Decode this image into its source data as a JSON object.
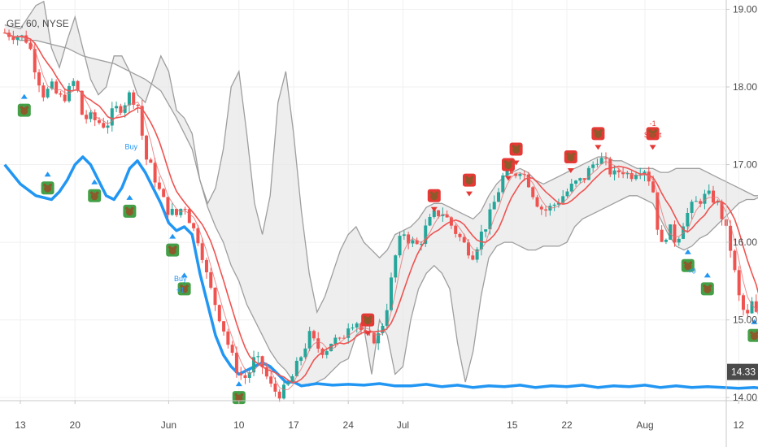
{
  "header": {
    "symbol": "GE, 60, NYSE"
  },
  "chart_data": {
    "type": "candlestick",
    "symbol": "GE",
    "interval": "60",
    "exchange": "NYSE",
    "last_price": {
      "value": 14.33,
      "label": "14.33"
    },
    "y_range": [
      13.96,
      19.12
    ],
    "y_ticks": [
      {
        "value": 19,
        "label": "19.00"
      },
      {
        "value": 18,
        "label": "18.00"
      },
      {
        "value": 17,
        "label": "17.00"
      },
      {
        "value": 16,
        "label": "16.00"
      },
      {
        "value": 15,
        "label": "15.00"
      },
      {
        "value": 14,
        "label": "14.00"
      }
    ],
    "x_ticks": [
      {
        "label": "13",
        "day": 0
      },
      {
        "label": "20",
        "day": 7
      },
      {
        "label": "Jun",
        "day": 19
      },
      {
        "label": "10",
        "day": 28
      },
      {
        "label": "17",
        "day": 35
      },
      {
        "label": "24",
        "day": 42
      },
      {
        "label": "Jul",
        "day": 49
      },
      {
        "label": "15",
        "day": 63
      },
      {
        "label": "22",
        "day": 70
      },
      {
        "label": "Aug",
        "day": 80
      },
      {
        "label": "12",
        "day": 92
      }
    ],
    "price_path": [
      [
        -2,
        18.7
      ],
      [
        0,
        18.65
      ],
      [
        1,
        18.6
      ],
      [
        2,
        18.2
      ],
      [
        3,
        17.9
      ],
      [
        4,
        18.0
      ],
      [
        5,
        17.85
      ],
      [
        6,
        17.9
      ],
      [
        7,
        18.1
      ],
      [
        8,
        17.6
      ],
      [
        9,
        17.6
      ],
      [
        10,
        17.55
      ],
      [
        11,
        17.5
      ],
      [
        12,
        17.7
      ],
      [
        13,
        17.75
      ],
      [
        14,
        17.9
      ],
      [
        15,
        17.8
      ],
      [
        16,
        17.1
      ],
      [
        17,
        16.9
      ],
      [
        18,
        16.6
      ],
      [
        19,
        16.4
      ],
      [
        20,
        16.35
      ],
      [
        21,
        16.5
      ],
      [
        22,
        16.2
      ],
      [
        23,
        16.0
      ],
      [
        24,
        15.5
      ],
      [
        25,
        15.2
      ],
      [
        26,
        14.9
      ],
      [
        27,
        14.55
      ],
      [
        28,
        14.3
      ],
      [
        29,
        14.25
      ],
      [
        30,
        14.5
      ],
      [
        31,
        14.4
      ],
      [
        32,
        14.15
      ],
      [
        33,
        14.05
      ],
      [
        34,
        14.1
      ],
      [
        35,
        14.3
      ],
      [
        36,
        14.55
      ],
      [
        37,
        14.8
      ],
      [
        38,
        14.65
      ],
      [
        39,
        14.6
      ],
      [
        40,
        14.75
      ],
      [
        41,
        14.7
      ],
      [
        42,
        14.95
      ],
      [
        43,
        15.0
      ],
      [
        44,
        14.8
      ],
      [
        45,
        14.75
      ],
      [
        46,
        14.8
      ],
      [
        47,
        15.2
      ],
      [
        48,
        15.8
      ],
      [
        49,
        16.15
      ],
      [
        50,
        16.0
      ],
      [
        51,
        15.95
      ],
      [
        52,
        16.2
      ],
      [
        53,
        16.35
      ],
      [
        54,
        16.4
      ],
      [
        55,
        16.25
      ],
      [
        56,
        16.1
      ],
      [
        57,
        15.95
      ],
      [
        58,
        15.85
      ],
      [
        59,
        16.1
      ],
      [
        60,
        16.3
      ],
      [
        61,
        16.6
      ],
      [
        62,
        16.9
      ],
      [
        63,
        16.85
      ],
      [
        64,
        16.95
      ],
      [
        65,
        16.8
      ],
      [
        66,
        16.55
      ],
      [
        67,
        16.4
      ],
      [
        68,
        16.45
      ],
      [
        69,
        16.55
      ],
      [
        70,
        16.65
      ],
      [
        71,
        16.75
      ],
      [
        72,
        16.8
      ],
      [
        73,
        16.95
      ],
      [
        74,
        17.1
      ],
      [
        75,
        17.0
      ],
      [
        76,
        16.85
      ],
      [
        77,
        16.95
      ],
      [
        78,
        16.85
      ],
      [
        79,
        16.95
      ],
      [
        80,
        16.95
      ],
      [
        81,
        16.7
      ],
      [
        82,
        15.9
      ],
      [
        83,
        16.2
      ],
      [
        84,
        16.0
      ],
      [
        85,
        16.3
      ],
      [
        86,
        16.45
      ],
      [
        87,
        16.55
      ],
      [
        88,
        16.6
      ],
      [
        89,
        16.55
      ],
      [
        90,
        16.3
      ],
      [
        91,
        15.9
      ],
      [
        92,
        15.3
      ],
      [
        93,
        15.0
      ],
      [
        94,
        15.3
      ],
      [
        95,
        14.33
      ]
    ],
    "cloud_upper": [
      [
        -2,
        18.8
      ],
      [
        0,
        18.75
      ],
      [
        2,
        19.05
      ],
      [
        3,
        19.1
      ],
      [
        4,
        18.5
      ],
      [
        5,
        18.25
      ],
      [
        6,
        18.6
      ],
      [
        7,
        18.9
      ],
      [
        8,
        18.5
      ],
      [
        9,
        18.1
      ],
      [
        10,
        17.9
      ],
      [
        11,
        18.0
      ],
      [
        12,
        18.4
      ],
      [
        13,
        18.4
      ],
      [
        14,
        18.2
      ],
      [
        15,
        17.9
      ],
      [
        16,
        17.8
      ],
      [
        17,
        18.1
      ],
      [
        18,
        18.4
      ],
      [
        19,
        18.2
      ],
      [
        20,
        17.7
      ],
      [
        21,
        17.6
      ],
      [
        22,
        17.4
      ],
      [
        23,
        16.8
      ],
      [
        24,
        16.5
      ],
      [
        25,
        16.7
      ],
      [
        26,
        17.2
      ],
      [
        27,
        18.0
      ],
      [
        28,
        18.2
      ],
      [
        29,
        17.4
      ],
      [
        30,
        16.5
      ],
      [
        31,
        16.1
      ],
      [
        32,
        16.6
      ],
      [
        33,
        17.8
      ],
      [
        34,
        18.2
      ],
      [
        35,
        17.4
      ],
      [
        36,
        16.4
      ],
      [
        37,
        15.6
      ],
      [
        38,
        15.1
      ],
      [
        39,
        15.3
      ],
      [
        40,
        15.6
      ],
      [
        41,
        15.9
      ],
      [
        42,
        16.1
      ],
      [
        43,
        16.2
      ],
      [
        44,
        16.0
      ],
      [
        45,
        15.9
      ],
      [
        46,
        15.8
      ],
      [
        47,
        15.9
      ],
      [
        48,
        16.1
      ],
      [
        49,
        16.15
      ],
      [
        50,
        16.2
      ],
      [
        51,
        16.3
      ],
      [
        52,
        16.45
      ],
      [
        53,
        16.5
      ],
      [
        54,
        16.5
      ],
      [
        55,
        16.45
      ],
      [
        56,
        16.4
      ],
      [
        57,
        16.35
      ],
      [
        58,
        16.3
      ],
      [
        59,
        16.4
      ],
      [
        60,
        16.6
      ],
      [
        61,
        16.75
      ],
      [
        62,
        16.85
      ],
      [
        63,
        16.9
      ],
      [
        64,
        16.95
      ],
      [
        65,
        16.9
      ],
      [
        66,
        16.8
      ],
      [
        67,
        16.75
      ],
      [
        68,
        16.8
      ],
      [
        69,
        16.85
      ],
      [
        70,
        16.9
      ],
      [
        71,
        16.95
      ],
      [
        72,
        17.0
      ],
      [
        73,
        17.05
      ],
      [
        74,
        17.1
      ],
      [
        75,
        17.1
      ],
      [
        76,
        17.05
      ],
      [
        77,
        17.05
      ],
      [
        78,
        17.0
      ],
      [
        79,
        16.95
      ],
      [
        80,
        16.95
      ],
      [
        81,
        16.95
      ],
      [
        82,
        16.9
      ],
      [
        83,
        16.9
      ],
      [
        84,
        16.95
      ],
      [
        85,
        16.95
      ],
      [
        86,
        16.95
      ],
      [
        87,
        16.95
      ],
      [
        88,
        16.9
      ],
      [
        89,
        16.85
      ],
      [
        90,
        16.8
      ],
      [
        91,
        16.75
      ],
      [
        92,
        16.7
      ],
      [
        93,
        16.65
      ],
      [
        94,
        16.6
      ],
      [
        95,
        16.6
      ]
    ],
    "cloud_lower": [
      [
        -2,
        18.7
      ],
      [
        0,
        18.6
      ],
      [
        2,
        18.6
      ],
      [
        4,
        18.55
      ],
      [
        6,
        18.5
      ],
      [
        8,
        18.4
      ],
      [
        10,
        18.35
      ],
      [
        12,
        18.3
      ],
      [
        14,
        18.2
      ],
      [
        16,
        18.1
      ],
      [
        18,
        17.95
      ],
      [
        20,
        17.6
      ],
      [
        22,
        17.2
      ],
      [
        23,
        16.8
      ],
      [
        24,
        16.45
      ],
      [
        25,
        16.2
      ],
      [
        26,
        16.0
      ],
      [
        27,
        15.7
      ],
      [
        28,
        15.5
      ],
      [
        29,
        15.2
      ],
      [
        30,
        15.0
      ],
      [
        31,
        14.8
      ],
      [
        32,
        14.6
      ],
      [
        33,
        14.45
      ],
      [
        34,
        14.35
      ],
      [
        35,
        14.2
      ],
      [
        36,
        14.15
      ],
      [
        37,
        14.15
      ],
      [
        38,
        14.2
      ],
      [
        39,
        14.25
      ],
      [
        40,
        14.35
      ],
      [
        41,
        14.45
      ],
      [
        42,
        14.5
      ],
      [
        43,
        14.8
      ],
      [
        44,
        14.9
      ],
      [
        45,
        14.3
      ],
      [
        46,
        15.0
      ],
      [
        47,
        14.8
      ],
      [
        48,
        14.3
      ],
      [
        49,
        14.4
      ],
      [
        50,
        15.0
      ],
      [
        51,
        15.4
      ],
      [
        52,
        15.6
      ],
      [
        53,
        15.7
      ],
      [
        54,
        15.6
      ],
      [
        55,
        15.4
      ],
      [
        56,
        14.7
      ],
      [
        57,
        14.2
      ],
      [
        58,
        14.6
      ],
      [
        59,
        15.3
      ],
      [
        60,
        15.8
      ],
      [
        61,
        15.95
      ],
      [
        62,
        16.0
      ],
      [
        63,
        16.0
      ],
      [
        64,
        15.95
      ],
      [
        65,
        15.9
      ],
      [
        66,
        15.9
      ],
      [
        67,
        15.95
      ],
      [
        68,
        15.95
      ],
      [
        69,
        15.95
      ],
      [
        70,
        16.0
      ],
      [
        71,
        16.2
      ],
      [
        72,
        16.3
      ],
      [
        73,
        16.35
      ],
      [
        74,
        16.4
      ],
      [
        75,
        16.45
      ],
      [
        76,
        16.5
      ],
      [
        77,
        16.55
      ],
      [
        78,
        16.6
      ],
      [
        79,
        16.6
      ],
      [
        80,
        16.55
      ],
      [
        81,
        16.5
      ],
      [
        82,
        16.3
      ],
      [
        83,
        16.1
      ],
      [
        84,
        15.95
      ],
      [
        85,
        15.9
      ],
      [
        86,
        15.95
      ],
      [
        87,
        16.05
      ],
      [
        88,
        16.1
      ],
      [
        89,
        16.2
      ],
      [
        90,
        16.3
      ],
      [
        91,
        16.4
      ],
      [
        92,
        16.5
      ],
      [
        93,
        16.55
      ],
      [
        94,
        16.55
      ],
      [
        95,
        16.6
      ]
    ],
    "blue_line": [
      [
        -2,
        17.0
      ],
      [
        0,
        16.75
      ],
      [
        2,
        16.6
      ],
      [
        4,
        16.55
      ],
      [
        5,
        16.65
      ],
      [
        6,
        16.8
      ],
      [
        7,
        17.0
      ],
      [
        8,
        17.1
      ],
      [
        9,
        17.0
      ],
      [
        10,
        16.8
      ],
      [
        11,
        16.6
      ],
      [
        12,
        16.55
      ],
      [
        13,
        16.7
      ],
      [
        14,
        16.95
      ],
      [
        15,
        17.05
      ],
      [
        16,
        16.9
      ],
      [
        17,
        16.7
      ],
      [
        18,
        16.5
      ],
      [
        19,
        16.25
      ],
      [
        20,
        16.15
      ],
      [
        21,
        16.2
      ],
      [
        22,
        16.1
      ],
      [
        23,
        15.6
      ],
      [
        24,
        15.2
      ],
      [
        25,
        14.8
      ],
      [
        26,
        14.55
      ],
      [
        27,
        14.4
      ],
      [
        28,
        14.3
      ],
      [
        29,
        14.35
      ],
      [
        30,
        14.4
      ],
      [
        31,
        14.45
      ],
      [
        32,
        14.4
      ],
      [
        33,
        14.3
      ],
      [
        34,
        14.2
      ],
      [
        35,
        14.2
      ],
      [
        36,
        14.15
      ],
      [
        38,
        14.18
      ],
      [
        40,
        14.16
      ],
      [
        42,
        14.17
      ],
      [
        44,
        14.16
      ],
      [
        46,
        14.18
      ],
      [
        48,
        14.15
      ],
      [
        50,
        14.15
      ],
      [
        52,
        14.17
      ],
      [
        54,
        14.14
      ],
      [
        56,
        14.16
      ],
      [
        58,
        14.13
      ],
      [
        60,
        14.15
      ],
      [
        62,
        14.14
      ],
      [
        64,
        14.16
      ],
      [
        66,
        14.13
      ],
      [
        68,
        14.15
      ],
      [
        70,
        14.14
      ],
      [
        72,
        14.16
      ],
      [
        74,
        14.13
      ],
      [
        76,
        14.15
      ],
      [
        78,
        14.14
      ],
      [
        80,
        14.16
      ],
      [
        82,
        14.13
      ],
      [
        84,
        14.15
      ],
      [
        86,
        14.13
      ],
      [
        88,
        14.14
      ],
      [
        90,
        14.13
      ],
      [
        92,
        14.12
      ],
      [
        94,
        14.13
      ],
      [
        95,
        14.12
      ]
    ],
    "signals": [
      {
        "kind": "bull",
        "day": 0.5,
        "price": 17.7
      },
      {
        "kind": "bull",
        "day": 3.5,
        "price": 16.7,
        "label": "Buy"
      },
      {
        "kind": "bull",
        "day": 9.5,
        "price": 16.6
      },
      {
        "kind": "bull",
        "day": 14,
        "price": 16.4
      },
      {
        "kind": "bull",
        "day": 19.5,
        "price": 15.9
      },
      {
        "kind": "bull",
        "day": 21,
        "price": 15.4
      },
      {
        "kind": "bull",
        "day": 28,
        "price": 14.0
      },
      {
        "kind": "bear",
        "day": 44.5,
        "price": 15.0,
        "label": "-1"
      },
      {
        "kind": "bear",
        "day": 53,
        "price": 16.6,
        "label": "-1"
      },
      {
        "kind": "bear",
        "day": 57.5,
        "price": 16.8,
        "label": "-1"
      },
      {
        "kind": "bear",
        "day": 62.5,
        "price": 17.0,
        "label": "-1"
      },
      {
        "kind": "bear",
        "day": 63.5,
        "price": 17.2,
        "label": "-1"
      },
      {
        "kind": "bear",
        "day": 70.5,
        "price": 17.1,
        "label": "-1"
      },
      {
        "kind": "bear",
        "day": 74,
        "price": 17.4,
        "label": "-1"
      },
      {
        "kind": "bear",
        "day": 81,
        "price": 17.4,
        "label": "Short"
      },
      {
        "kind": "bull",
        "day": 85.5,
        "price": 15.7
      },
      {
        "kind": "bull",
        "day": 88,
        "price": 15.4
      },
      {
        "kind": "bull",
        "day": 94,
        "price": 14.8
      }
    ],
    "annotations": [
      {
        "text": "Buy",
        "day": 20.5,
        "price": 15.5,
        "color": "#2196f3"
      },
      {
        "text": "+1",
        "day": 20.5,
        "price": 15.35,
        "color": "#2196f3"
      },
      {
        "text": "Buy",
        "day": 14.2,
        "price": 17.2,
        "color": "#2196f3"
      },
      {
        "text": "+9",
        "day": 86,
        "price": 15.6,
        "color": "#2196f3"
      },
      {
        "text": "-1",
        "day": 81,
        "price": 17.5,
        "color": "#e53935"
      },
      {
        "text": "Short",
        "day": 81,
        "price": 17.35,
        "color": "#e53935"
      }
    ],
    "grid": true
  }
}
